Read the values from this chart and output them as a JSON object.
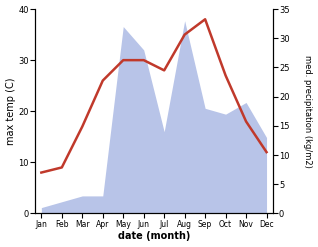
{
  "months": [
    "Jan",
    "Feb",
    "Mar",
    "Apr",
    "May",
    "Jun",
    "Jul",
    "Aug",
    "Sep",
    "Oct",
    "Nov",
    "Dec"
  ],
  "temperature": [
    8,
    9,
    17,
    26,
    30,
    30,
    28,
    35,
    38,
    27,
    18,
    12
  ],
  "precipitation": [
    1,
    2,
    3,
    3,
    32,
    28,
    14,
    33,
    18,
    17,
    19,
    13
  ],
  "temp_color": "#c0392b",
  "precip_color_fill": "#b8c4e8",
  "left_ylabel": "max temp (C)",
  "right_ylabel": "med. precipitation (kg/m2)",
  "xlabel": "date (month)",
  "ylim_left": [
    0,
    40
  ],
  "ylim_right": [
    0,
    35
  ],
  "yticks_left": [
    0,
    10,
    20,
    30,
    40
  ],
  "yticks_right": [
    0,
    5,
    10,
    15,
    20,
    25,
    30,
    35
  ]
}
